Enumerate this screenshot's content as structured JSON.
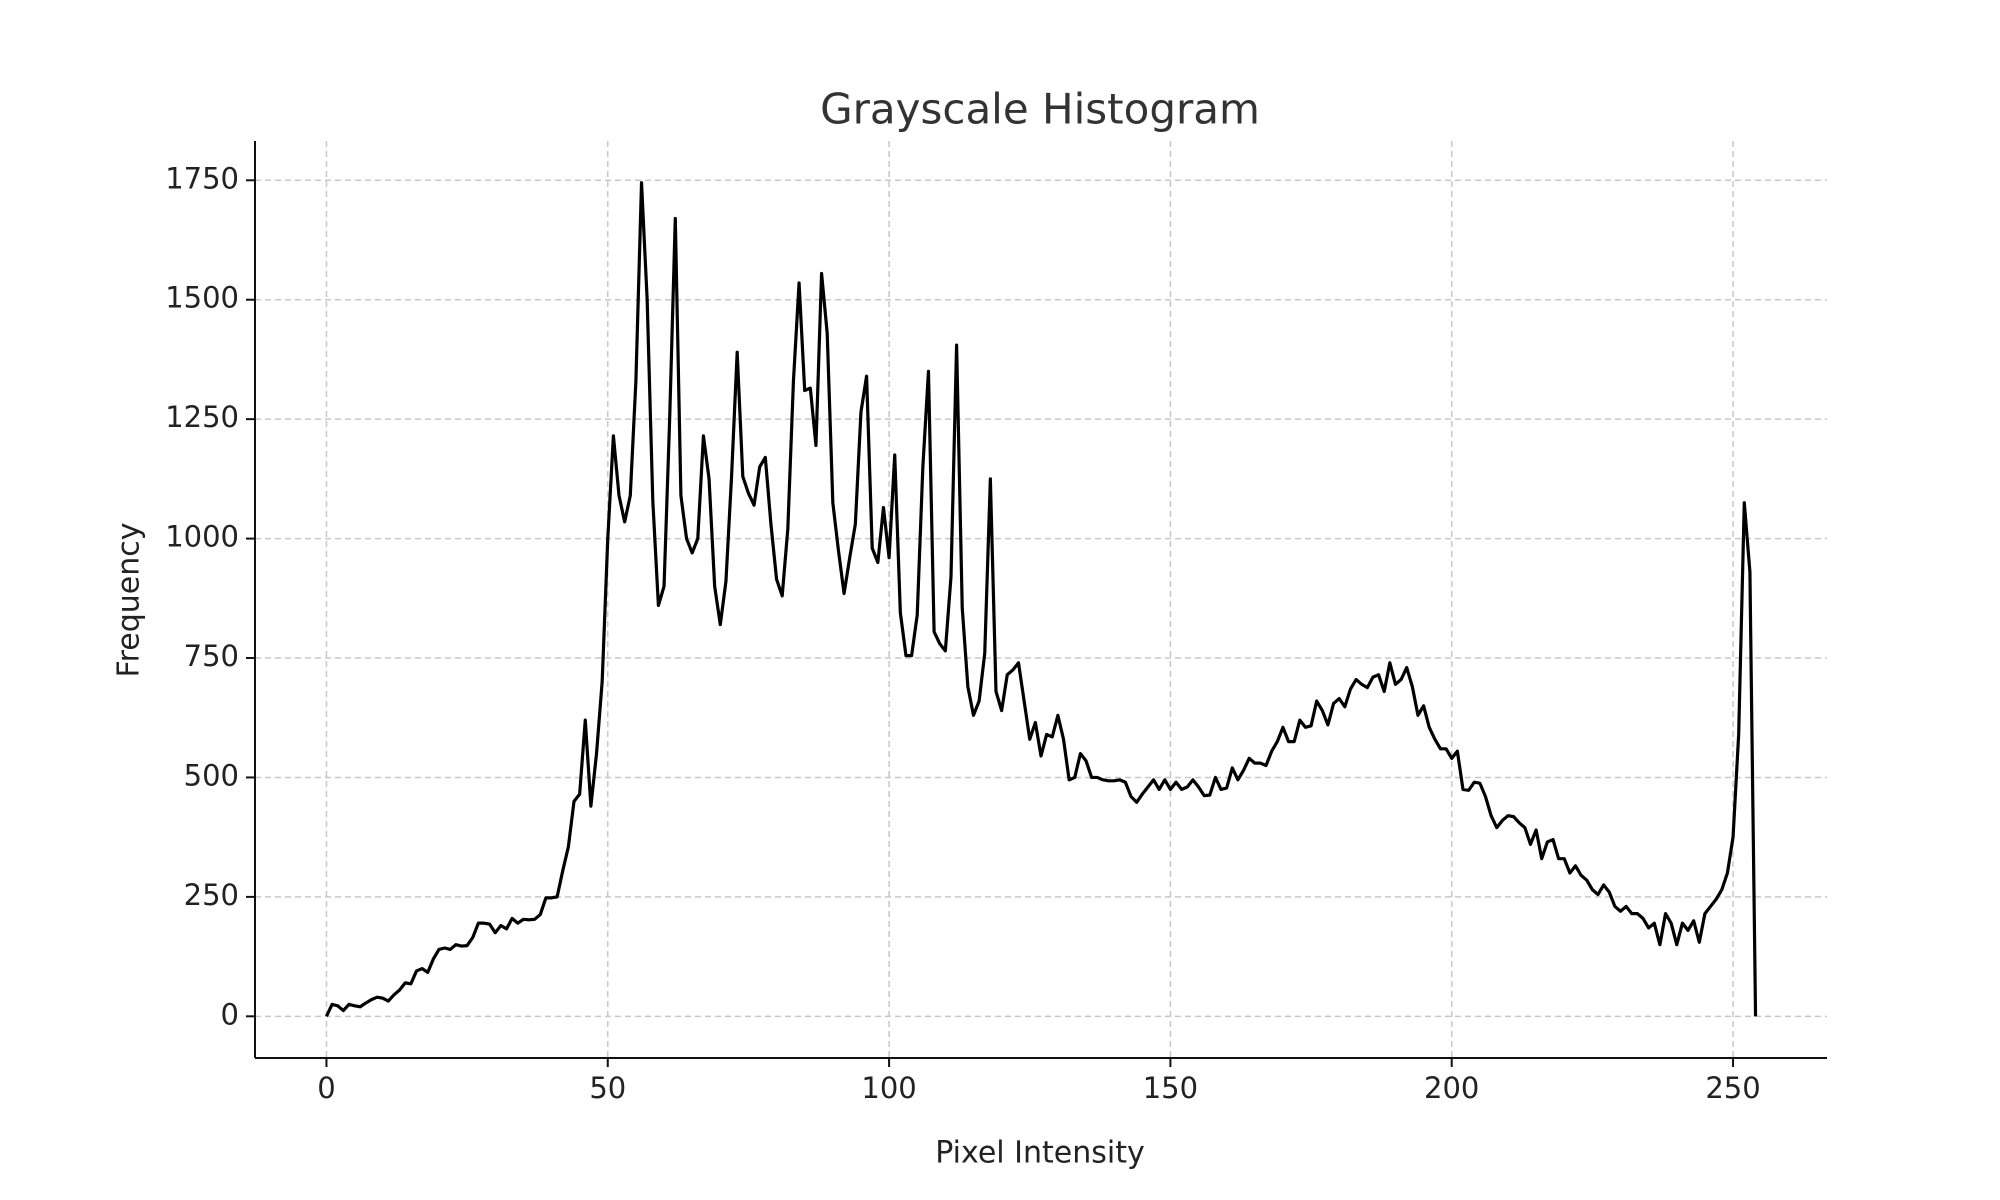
{
  "chart_data": {
    "type": "line",
    "title": "Grayscale Histogram",
    "x_label": "Pixel Intensity",
    "y_label": "Frequency",
    "x": [
      0,
      1,
      2,
      3,
      4,
      5,
      6,
      7,
      8,
      9,
      10,
      11,
      12,
      13,
      14,
      15,
      16,
      17,
      18,
      19,
      20,
      21,
      22,
      23,
      24,
      25,
      26,
      27,
      28,
      29,
      30,
      31,
      32,
      33,
      34,
      35,
      36,
      37,
      38,
      39,
      40,
      41,
      42,
      43,
      44,
      45,
      46,
      47,
      48,
      49,
      50,
      51,
      52,
      53,
      54,
      55,
      56,
      57,
      58,
      59,
      60,
      61,
      62,
      63,
      64,
      65,
      66,
      67,
      68,
      69,
      70,
      71,
      72,
      73,
      74,
      75,
      76,
      77,
      78,
      79,
      80,
      81,
      82,
      83,
      84,
      85,
      86,
      87,
      88,
      89,
      90,
      91,
      92,
      93,
      94,
      95,
      96,
      97,
      98,
      99,
      100,
      101,
      102,
      103,
      104,
      105,
      106,
      107,
      108,
      109,
      110,
      111,
      112,
      113,
      114,
      115,
      116,
      117,
      118,
      119,
      120,
      121,
      122,
      123,
      124,
      125,
      126,
      127,
      128,
      129,
      130,
      131,
      132,
      133,
      134,
      135,
      136,
      137,
      138,
      139,
      140,
      141,
      142,
      143,
      144,
      145,
      146,
      147,
      148,
      149,
      150,
      151,
      152,
      153,
      154,
      155,
      156,
      157,
      158,
      159,
      160,
      161,
      162,
      163,
      164,
      165,
      166,
      167,
      168,
      169,
      170,
      171,
      172,
      173,
      174,
      175,
      176,
      177,
      178,
      179,
      180,
      181,
      182,
      183,
      184,
      185,
      186,
      187,
      188,
      189,
      190,
      191,
      192,
      193,
      194,
      195,
      196,
      197,
      198,
      199,
      200,
      201,
      202,
      203,
      204,
      205,
      206,
      207,
      208,
      209,
      210,
      211,
      212,
      213,
      214,
      215,
      216,
      217,
      218,
      219,
      220,
      221,
      222,
      223,
      224,
      225,
      226,
      227,
      228,
      229,
      230,
      231,
      232,
      233,
      234,
      235,
      236,
      237,
      238,
      239,
      240,
      241,
      242,
      243,
      244,
      245,
      246,
      247,
      248,
      249,
      250,
      251,
      252,
      253,
      254
    ],
    "series": [
      {
        "color": "#000000",
        "values": [
          0,
          25,
          22,
          12,
          25,
          22,
          20,
          28,
          35,
          40,
          38,
          32,
          45,
          55,
          70,
          68,
          95,
          100,
          92,
          120,
          140,
          143,
          140,
          150,
          147,
          148,
          165,
          195,
          195,
          193,
          175,
          190,
          183,
          205,
          195,
          203,
          202,
          203,
          213,
          248,
          248,
          250,
          305,
          355,
          450,
          465,
          620,
          440,
          550,
          700,
          1000,
          1215,
          1090,
          1035,
          1090,
          1330,
          1745,
          1500,
          1080,
          860,
          900,
          1250,
          1670,
          1090,
          1000,
          970,
          1000,
          1215,
          1125,
          900,
          820,
          910,
          1130,
          1390,
          1130,
          1095,
          1070,
          1150,
          1170,
          1030,
          915,
          880,
          1020,
          1330,
          1535,
          1310,
          1315,
          1195,
          1555,
          1430,
          1075,
          975,
          885,
          960,
          1030,
          1265,
          1340,
          980,
          950,
          1065,
          960,
          1175,
          845,
          755,
          755,
          840,
          1150,
          1350,
          805,
          780,
          765,
          920,
          1405,
          855,
          690,
          630,
          660,
          760,
          1125,
          680,
          640,
          715,
          725,
          740,
          660,
          580,
          615,
          545,
          590,
          585,
          630,
          580,
          495,
          500,
          550,
          535,
          500,
          500,
          495,
          493,
          493,
          495,
          490,
          460,
          448,
          465,
          480,
          495,
          475,
          495,
          475,
          490,
          475,
          480,
          495,
          480,
          462,
          463,
          500,
          475,
          478,
          520,
          495,
          515,
          540,
          530,
          530,
          525,
          555,
          575,
          605,
          575,
          575,
          620,
          605,
          608,
          660,
          640,
          610,
          655,
          665,
          648,
          685,
          705,
          695,
          688,
          710,
          715,
          680,
          740,
          695,
          705,
          730,
          690,
          630,
          650,
          605,
          580,
          560,
          560,
          540,
          555,
          475,
          473,
          490,
          488,
          460,
          420,
          395,
          410,
          420,
          418,
          405,
          395,
          360,
          390,
          330,
          365,
          370,
          330,
          330,
          300,
          315,
          295,
          285,
          265,
          255,
          275,
          260,
          230,
          220,
          230,
          215,
          215,
          205,
          185,
          195,
          150,
          215,
          195,
          150,
          195,
          180,
          200,
          155,
          215,
          230,
          245,
          265,
          300,
          375,
          590,
          1075,
          930,
          0
        ]
      }
    ],
    "xlim": [
      -12.7,
      266.7
    ],
    "ylim": [
      -87.25,
      1832.25
    ],
    "xticks": [
      0,
      50,
      100,
      150,
      200,
      250
    ],
    "yticks": [
      0,
      250,
      500,
      750,
      1000,
      1250,
      1500,
      1750
    ],
    "grid": true
  }
}
